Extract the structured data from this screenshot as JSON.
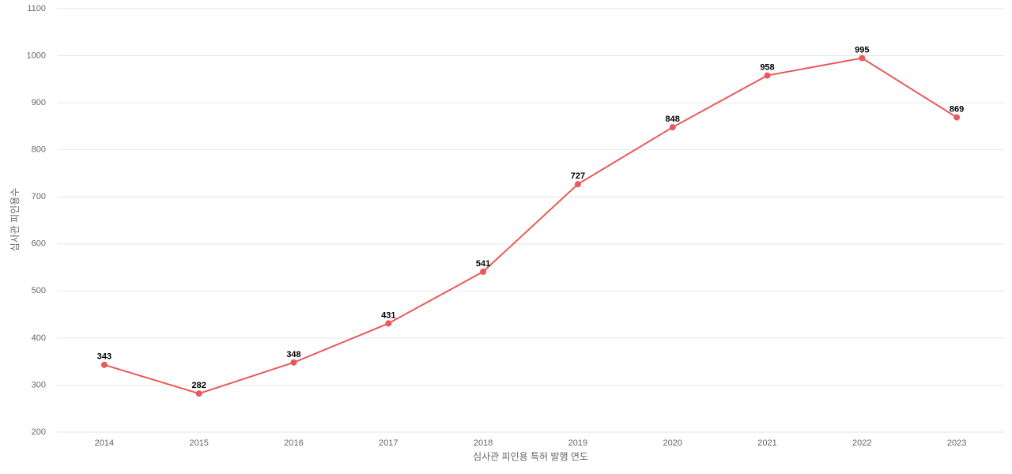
{
  "chart_data": {
    "type": "line",
    "x_label": "심사관 피인용 특허 발행 연도",
    "y_label": "심사관 피인용수",
    "categories": [
      "2014",
      "2015",
      "2016",
      "2017",
      "2018",
      "2019",
      "2020",
      "2021",
      "2022",
      "2023"
    ],
    "series": [
      {
        "name": "심사관 피인용수",
        "color": "#e85a5a",
        "values": [
          343,
          282,
          348,
          431,
          541,
          727,
          848,
          958,
          995,
          869
        ]
      }
    ],
    "ylim": [
      200,
      1100
    ],
    "yticks": [
      200,
      300,
      400,
      500,
      600,
      700,
      800,
      900,
      1000,
      1100
    ],
    "grid": true
  }
}
